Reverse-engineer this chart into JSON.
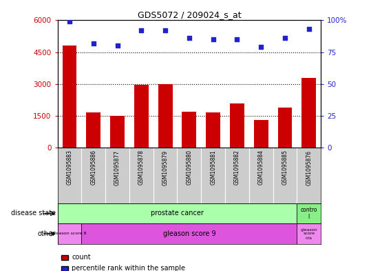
{
  "title": "GDS5072 / 209024_s_at",
  "samples": [
    "GSM1095883",
    "GSM1095886",
    "GSM1095877",
    "GSM1095878",
    "GSM1095879",
    "GSM1095880",
    "GSM1095881",
    "GSM1095882",
    "GSM1095884",
    "GSM1095885",
    "GSM1095876"
  ],
  "counts": [
    4800,
    1650,
    1500,
    2950,
    2980,
    1680,
    1650,
    2100,
    1300,
    1900,
    3300
  ],
  "percentile_ranks": [
    99,
    82,
    80,
    92,
    92,
    86,
    85,
    85,
    79,
    86,
    93
  ],
  "ylim_left": [
    0,
    6000
  ],
  "ylim_right": [
    0,
    100
  ],
  "yticks_left": [
    0,
    1500,
    3000,
    4500,
    6000
  ],
  "yticks_right": [
    0,
    25,
    50,
    75,
    100
  ],
  "bar_color": "#cc0000",
  "dot_color": "#2222cc",
  "prostate_color": "#aaffaa",
  "control_color": "#88ee88",
  "gleason8_color": "#ee88ee",
  "gleason9_color": "#dd55dd",
  "gleasonna_color": "#ee88ee",
  "sample_bg": "#cccccc",
  "grid_color": "#000000",
  "plot_bg": "#ffffff"
}
